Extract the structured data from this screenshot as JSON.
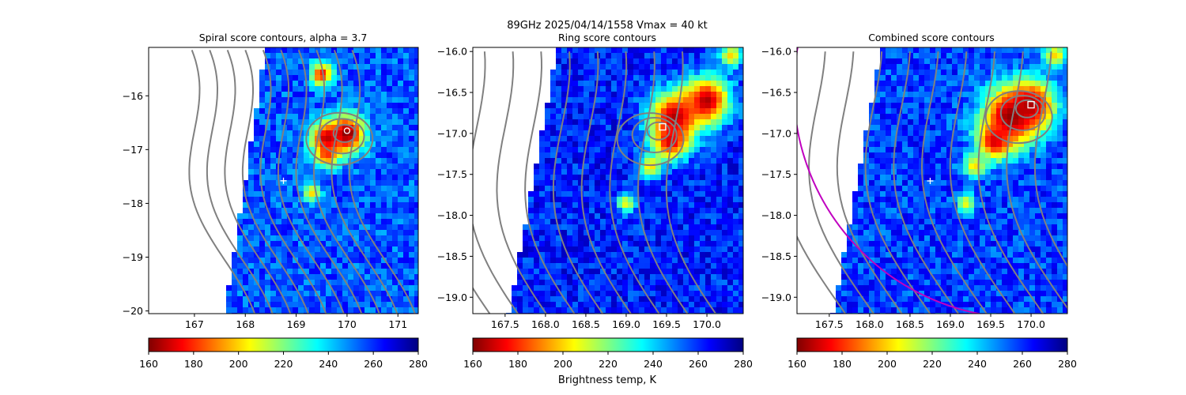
{
  "suptitle": {
    "line1": "89GHz  2025/04/14/1558    Vmax = 40 kt"
  },
  "colorbar_label": "Brightness temp, K",
  "colormap": [
    "#800000",
    "#ff0000",
    "#ff8000",
    "#ffff00",
    "#80ff80",
    "#00ffff",
    "#0080ff",
    "#0000ff",
    "#000080"
  ],
  "colors": {
    "contour": "#808080",
    "marker": "#ffffff",
    "circle": "#c000c0"
  },
  "chart_data": [
    {
      "type": "heatmap",
      "title": "Spiral score contours, alpha =  3.7",
      "xlim": [
        166.1,
        171.4
      ],
      "ylim": [
        -20.05,
        -15.1
      ],
      "xticks": [
        {
          "v": 167,
          "label": "167"
        },
        {
          "v": 168,
          "label": "168"
        },
        {
          "v": 169,
          "label": "169"
        },
        {
          "v": 170,
          "label": "170"
        },
        {
          "v": 171,
          "label": "171"
        }
      ],
      "yticks": [
        {
          "v": -16,
          "label": "−16"
        },
        {
          "v": -17,
          "label": "−17"
        },
        {
          "v": -18,
          "label": "−18"
        },
        {
          "v": -19,
          "label": "−19"
        },
        {
          "v": -20,
          "label": "−20"
        }
      ],
      "swath_edge": [
        [
          168.4,
          -15.1
        ],
        [
          167.6,
          -20.05
        ]
      ],
      "cold_spots": [
        {
          "x": 170.0,
          "y": -16.7,
          "r": 0.25,
          "tb": 160
        },
        {
          "x": 169.6,
          "y": -16.8,
          "r": 0.22,
          "tb": 165
        },
        {
          "x": 169.5,
          "y": -15.6,
          "r": 0.15,
          "tb": 175
        },
        {
          "x": 169.6,
          "y": -17.1,
          "r": 0.15,
          "tb": 180
        },
        {
          "x": 169.3,
          "y": -17.8,
          "r": 0.12,
          "tb": 200
        }
      ],
      "background_tb": 255,
      "center_marker": {
        "symbol": "+",
        "x": 168.75,
        "y": -17.58
      },
      "fix_marker": {
        "symbol": "circle",
        "x": 170.0,
        "y": -16.65
      }
    },
    {
      "type": "heatmap",
      "title": "Ring score contours",
      "xlim": [
        167.1,
        170.45
      ],
      "ylim": [
        -19.2,
        -15.95
      ],
      "xticks": [
        {
          "v": 167.5,
          "label": "167.5"
        },
        {
          "v": 168.0,
          "label": "168.0"
        },
        {
          "v": 168.5,
          "label": "168.5"
        },
        {
          "v": 169.0,
          "label": "169.0"
        },
        {
          "v": 169.5,
          "label": "169.5"
        },
        {
          "v": 170.0,
          "label": "170.0"
        }
      ],
      "yticks": [
        {
          "v": -16.0,
          "label": "−16.0"
        },
        {
          "v": -16.5,
          "label": "−16.5"
        },
        {
          "v": -17.0,
          "label": "−17.0"
        },
        {
          "v": -17.5,
          "label": "−17.5"
        },
        {
          "v": -18.0,
          "label": "−18.0"
        },
        {
          "v": -18.5,
          "label": "−18.5"
        },
        {
          "v": -19.0,
          "label": "−19.0"
        }
      ],
      "swath_edge": [
        [
          168.15,
          -15.95
        ],
        [
          167.55,
          -19.2
        ]
      ],
      "cold_spots": [
        {
          "x": 169.6,
          "y": -16.8,
          "r": 0.22,
          "tb": 165
        },
        {
          "x": 170.0,
          "y": -16.6,
          "r": 0.2,
          "tb": 165
        },
        {
          "x": 169.55,
          "y": -17.1,
          "r": 0.15,
          "tb": 170
        },
        {
          "x": 169.3,
          "y": -17.4,
          "r": 0.1,
          "tb": 200
        },
        {
          "x": 169.0,
          "y": -17.85,
          "r": 0.08,
          "tb": 205
        },
        {
          "x": 170.3,
          "y": -16.05,
          "r": 0.1,
          "tb": 200
        }
      ],
      "background_tb": 262,
      "fix_marker": {
        "symbol": "square",
        "x": 169.45,
        "y": -16.92
      }
    },
    {
      "type": "heatmap",
      "title": "Combined score contours",
      "xlim": [
        167.1,
        170.45
      ],
      "ylim": [
        -19.2,
        -15.95
      ],
      "xticks": [
        {
          "v": 167.5,
          "label": "167.5"
        },
        {
          "v": 168.0,
          "label": "168.0"
        },
        {
          "v": 168.5,
          "label": "168.5"
        },
        {
          "v": 169.0,
          "label": "169.0"
        },
        {
          "v": 169.5,
          "label": "169.5"
        },
        {
          "v": 170.0,
          "label": "170.0"
        }
      ],
      "yticks": [
        {
          "v": -16.0,
          "label": "−16.0"
        },
        {
          "v": -16.5,
          "label": "−16.5"
        },
        {
          "v": -17.0,
          "label": "−17.0"
        },
        {
          "v": -17.5,
          "label": "−17.5"
        },
        {
          "v": -18.0,
          "label": "−18.0"
        },
        {
          "v": -18.5,
          "label": "−18.5"
        },
        {
          "v": -19.0,
          "label": "−19.0"
        }
      ],
      "swath_edge": [
        [
          168.15,
          -15.95
        ],
        [
          167.55,
          -19.2
        ]
      ],
      "cold_spots": [
        {
          "x": 169.75,
          "y": -16.8,
          "r": 0.25,
          "tb": 160
        },
        {
          "x": 170.0,
          "y": -16.65,
          "r": 0.2,
          "tb": 165
        },
        {
          "x": 169.55,
          "y": -17.1,
          "r": 0.15,
          "tb": 170
        },
        {
          "x": 169.3,
          "y": -17.4,
          "r": 0.1,
          "tb": 200
        },
        {
          "x": 169.2,
          "y": -17.85,
          "r": 0.08,
          "tb": 205
        },
        {
          "x": 170.3,
          "y": -16.05,
          "r": 0.1,
          "tb": 200
        }
      ],
      "background_tb": 258,
      "center_marker": {
        "symbol": "+",
        "x": 168.75,
        "y": -17.58
      },
      "fix_marker": {
        "symbol": "square",
        "x": 170.0,
        "y": -16.65
      }
    }
  ],
  "colorbars": [
    {
      "range": [
        160,
        280
      ],
      "ticks": [
        "160",
        "180",
        "200",
        "220",
        "240",
        "260",
        "280"
      ]
    },
    {
      "range": [
        160,
        280
      ],
      "ticks": [
        "160",
        "180",
        "200",
        "220",
        "240",
        "260",
        "280"
      ]
    },
    {
      "range": [
        160,
        280
      ],
      "ticks": [
        "160",
        "180",
        "200",
        "220",
        "240",
        "260",
        "280"
      ]
    }
  ]
}
